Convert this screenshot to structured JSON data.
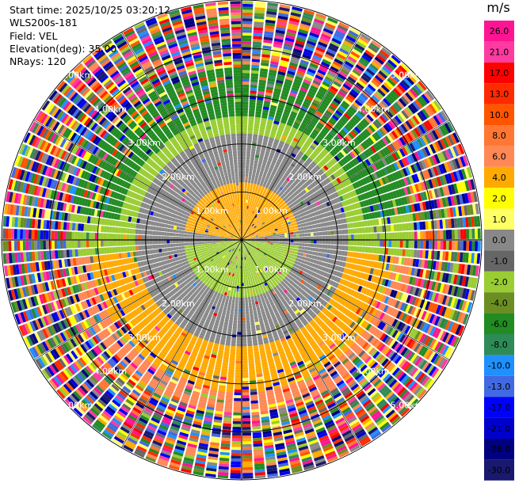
{
  "info": {
    "start_time": "Start time: 2025/10/25 03:20:12",
    "instrument": "WLS200s-181",
    "field": "Field: VEL",
    "elevation": "Elevation(deg): 35.00",
    "nrays": "NRays: 120"
  },
  "colorbar": {
    "unit": "m/s",
    "ticks": [
      "26.0",
      "21.0",
      "17.0",
      "13.0",
      "10.0",
      "8.0",
      "6.0",
      "4.0",
      "2.0",
      "1.0",
      "0.0",
      "-1.0",
      "-2.0",
      "-4.0",
      "-6.0",
      "-8.0",
      "-10.0",
      "-13.0",
      "-17.0",
      "-21.0",
      "-26.0",
      "-30.0"
    ],
    "colors": [
      "#ff1493",
      "#ff3aa0",
      "#ff0000",
      "#ff2a00",
      "#ff5500",
      "#ff7733",
      "#ff8855",
      "#ffaa00",
      "#ffff00",
      "#ffff66",
      "#888888",
      "#666666",
      "#9acd32",
      "#6b8e23",
      "#228b22",
      "#2e8b57",
      "#1e90ff",
      "#4169e1",
      "#0000ff",
      "#0000cd",
      "#000080",
      "#191970"
    ]
  },
  "chart_data": {
    "type": "heatmap",
    "projection": "polar PPI",
    "field": "VEL",
    "units": "m/s",
    "n_rays": 120,
    "ring_labels": [
      "1.00km",
      "2.00km",
      "3.00km",
      "4.00km",
      "5.00km"
    ],
    "rings_km": [
      1,
      2,
      3,
      4,
      5
    ],
    "max_range_km": 5.0,
    "grid": true,
    "regions": [
      {
        "range_km": [
          0,
          1.2
        ],
        "sector": "north",
        "value_ms": 4.0
      },
      {
        "range_km": [
          0,
          1.2
        ],
        "sector": "south",
        "value_ms": -2.0
      },
      {
        "range_km": [
          0,
          2.2
        ],
        "sector": "other",
        "value_ms": 0.0
      },
      {
        "range_km": [
          1.2,
          2.6
        ],
        "sector": "north",
        "value_ms": -2.0
      },
      {
        "range_km": [
          1.8,
          3.2
        ],
        "sector": "south",
        "value_ms": 4.0
      },
      {
        "range_km": [
          2.6,
          3.6
        ],
        "sector": "north",
        "value_ms": -6.0
      },
      {
        "range_km": [
          3.6,
          5.0
        ],
        "sector": "all",
        "value_ms": "noise"
      }
    ]
  }
}
